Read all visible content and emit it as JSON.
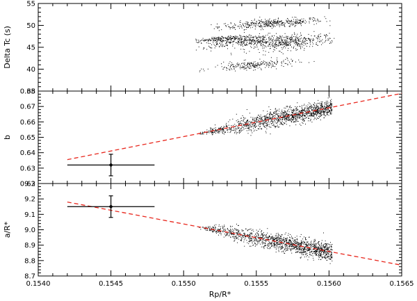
{
  "chart_data": [
    {
      "type": "scatter",
      "panel": "delta-tc",
      "ylabel": "Delta Tc (s)",
      "xlim": [
        0.154,
        0.1565
      ],
      "ylim": [
        35,
        55
      ],
      "yticks": [
        "35",
        "40",
        "45",
        "50",
        "55"
      ],
      "cloud": {
        "point_count": 1600,
        "x_range": [
          0.15508,
          0.15604
        ],
        "y_range": [
          38.5,
          52.5
        ],
        "lobes": [
          {
            "x": 0.1556,
            "y": 50.5,
            "sx": 0.00018,
            "sy": 1.4,
            "weight": 0.25
          },
          {
            "x": 0.15545,
            "y": 46.5,
            "sx": 0.00022,
            "sy": 1.8,
            "weight": 0.3
          },
          {
            "x": 0.15575,
            "y": 46.0,
            "sx": 0.00015,
            "sy": 2.0,
            "weight": 0.2
          },
          {
            "x": 0.15548,
            "y": 41.0,
            "sx": 0.00014,
            "sy": 1.4,
            "weight": 0.15
          },
          {
            "x": 0.15525,
            "y": 47.0,
            "sx": 0.0001,
            "sy": 0.8,
            "weight": 0.1
          }
        ]
      }
    },
    {
      "type": "scatter",
      "panel": "impact-parameter",
      "ylabel": "b",
      "xlim": [
        0.154,
        0.1565
      ],
      "ylim": [
        0.62,
        0.68
      ],
      "yticks": [
        "0.62",
        "0.63",
        "0.64",
        "0.65",
        "0.66",
        "0.67",
        "0.68"
      ],
      "fit_line": {
        "x": [
          0.1542,
          0.1565
        ],
        "y": [
          0.6355,
          0.6785
        ]
      },
      "measurement": {
        "x": 0.1545,
        "y": 0.632,
        "xerr": 0.0003,
        "yerr": 0.007
      },
      "cloud": {
        "point_count": 1400,
        "x_range": [
          0.1551,
          0.15602
        ],
        "band_offset": 0.0,
        "band_spread": 0.006
      }
    },
    {
      "type": "scatter",
      "panel": "a-over-rstar",
      "ylabel": "a/R*",
      "xlabel": "Rp/R*",
      "xlim": [
        0.154,
        0.1565
      ],
      "ylim": [
        8.7,
        9.3
      ],
      "yticks": [
        "8.7",
        "8.8",
        "8.9",
        "9.0",
        "9.1",
        "9.2",
        "9.3"
      ],
      "xticks": [
        "0.1540",
        "0.1545",
        "0.1550",
        "0.1555",
        "0.1560",
        "0.1565"
      ],
      "fit_line": {
        "x": [
          0.1542,
          0.1565
        ],
        "y": [
          9.18,
          8.77
        ]
      },
      "measurement": {
        "x": 0.1545,
        "y": 9.15,
        "xerr": 0.0003,
        "yerr": 0.07
      },
      "cloud": {
        "point_count": 1400,
        "x_range": [
          0.1551,
          0.15602
        ],
        "band_offset": 0.0,
        "band_spread": 0.06
      }
    }
  ],
  "colors": {
    "points": "#000000",
    "fit_line": "#e8261c",
    "axes": "#000000"
  }
}
